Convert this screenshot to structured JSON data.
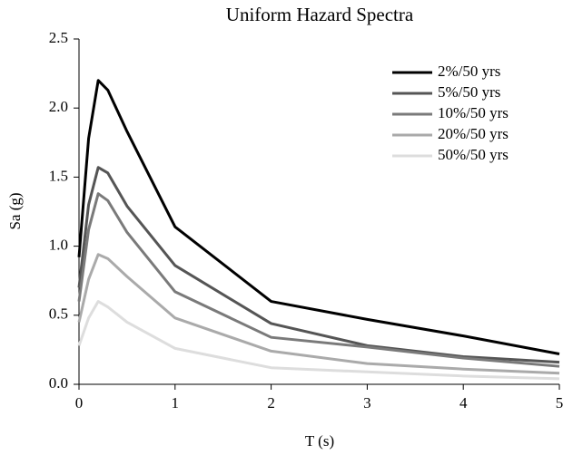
{
  "chart_data": {
    "type": "line",
    "title": "Uniform Hazard Spectra",
    "x_label": "T (s)",
    "y_label": "Sa (g)",
    "x": [
      0,
      0.1,
      0.2,
      0.3,
      0.5,
      1,
      2,
      3,
      4,
      5
    ],
    "series": [
      {
        "name": "2%/50 yrs",
        "color": "#000000",
        "values": [
          0.92,
          1.78,
          2.2,
          2.13,
          1.83,
          1.14,
          0.6,
          0.47,
          0.35,
          0.22
        ]
      },
      {
        "name": "5%/50 yrs",
        "color": "#555555",
        "values": [
          0.7,
          1.3,
          1.57,
          1.53,
          1.29,
          0.86,
          0.44,
          0.28,
          0.2,
          0.16
        ]
      },
      {
        "name": "10%/50 yrs",
        "color": "#7a7a7a",
        "values": [
          0.6,
          1.12,
          1.38,
          1.33,
          1.1,
          0.67,
          0.34,
          0.27,
          0.19,
          0.13
        ]
      },
      {
        "name": "20%/50 yrs",
        "color": "#aaaaaa",
        "values": [
          0.45,
          0.76,
          0.94,
          0.91,
          0.78,
          0.48,
          0.24,
          0.15,
          0.11,
          0.08
        ]
      },
      {
        "name": "50%/50 yrs",
        "color": "#dddddd",
        "values": [
          0.28,
          0.48,
          0.6,
          0.56,
          0.45,
          0.26,
          0.12,
          0.09,
          0.06,
          0.04
        ]
      }
    ],
    "xlim": [
      0,
      5
    ],
    "xticks": [
      0,
      1,
      2,
      3,
      4,
      5
    ],
    "ylim": [
      0,
      2.5
    ],
    "yticks": [
      {
        "value": 0,
        "label": "0.0"
      },
      {
        "value": 0.5,
        "label": "0.5"
      },
      {
        "value": 1,
        "label": "1.0"
      },
      {
        "value": 1.5,
        "label": "1.5"
      },
      {
        "value": 2,
        "label": "2.0"
      },
      {
        "value": 2.5,
        "label": "2.5"
      }
    ],
    "legend": "upper right",
    "grid": false
  }
}
